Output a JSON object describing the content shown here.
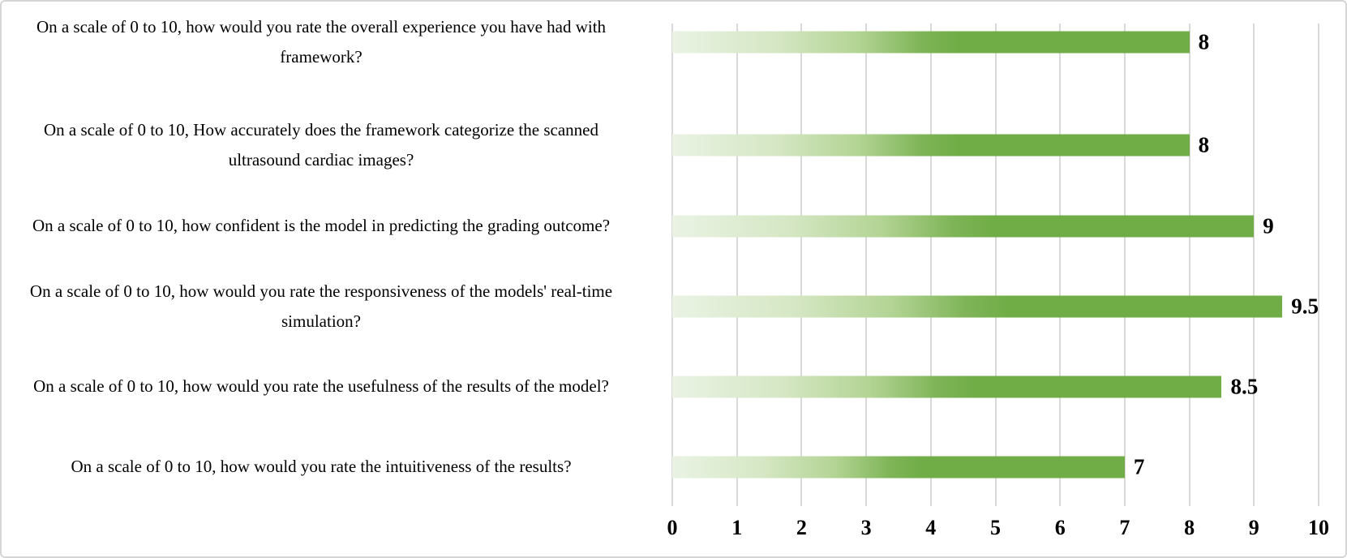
{
  "chart_data": {
    "type": "bar",
    "orientation": "horizontal",
    "title": "",
    "xlabel": "",
    "ylabel": "",
    "xlim": [
      0,
      10
    ],
    "grid": true,
    "legend": "none",
    "categories": [
      "On a scale of 0 to 10, How accurately does the framework categorize the scanned ultrasound cardiac images?",
      "On a scale of 0 to 10, how confident is the model in predicting the grading outcome?",
      "On a scale of 0 to 10, how would you rate the responsiveness of the models' real-time simulation?",
      "On a scale of 0 to 10, how would you rate the usefulness of the results of the model?",
      "On a scale of 0 to 10, how would you rate the intuitiveness of the results?",
      "On a scale of 0 to 10, how would you rate the overall experience you have had with framework?"
    ],
    "values": [
      8,
      9,
      9.5,
      8.5,
      7,
      8
    ],
    "value_labels": [
      "8",
      "9",
      "9.5",
      "8.5",
      "7",
      "8"
    ],
    "x_ticks": [
      "0",
      "1",
      "2",
      "3",
      "4",
      "5",
      "6",
      "7",
      "8",
      "9",
      "10"
    ],
    "colors": {
      "bar_solid": "#70ad47",
      "bar_gradient_start": "#eaf3e4",
      "gridline": "#d9d9d9",
      "border": "#d6d6d6",
      "text": "#000000"
    }
  }
}
